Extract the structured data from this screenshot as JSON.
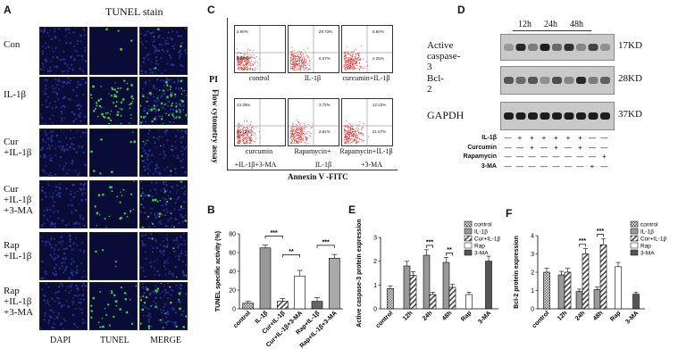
{
  "panelA": {
    "letter": "A",
    "title": "TUNEL stain",
    "rows": [
      "Con",
      "IL-1β",
      "Cur\n+IL-1β",
      "Cur\n+IL-1β\n+3-MA",
      "Rap\n+IL-1β",
      "Rap\n+IL-1β\n+3-MA"
    ],
    "columns": [
      "DAPI",
      "TUNEL",
      "MERGE"
    ],
    "green_density": [
      0.05,
      0.9,
      0.12,
      0.35,
      0.06,
      0.4
    ]
  },
  "panelC": {
    "letter": "C",
    "ylabel": "PI",
    "side_label": "Flow cytometry assay",
    "xlabel": "Annexin V -FITC",
    "plots": [
      {
        "caption": "control",
        "quadrants": [
          "2.90%",
          "",
          "1.62%",
          ""
        ]
      },
      {
        "caption": "IL-1β",
        "quadrants": [
          "",
          "28.73%",
          "",
          "6.07%"
        ]
      },
      {
        "caption": "curcumin+IL-1β",
        "quadrants": [
          "",
          "6.90%",
          "",
          "2.25%"
        ]
      },
      {
        "caption": "curcumin",
        "quadrants": [
          "13.39%",
          "",
          "23.73%",
          ""
        ]
      },
      {
        "caption": "Rapamycin+",
        "quadrants": [
          "",
          "3.72%",
          "",
          "2.81%"
        ]
      },
      {
        "caption": "Rapamycin+IL-1β",
        "quadrants": [
          "",
          "12.22%",
          "",
          "21.67%"
        ]
      }
    ],
    "bottom_captions": [
      "+IL-1β+3-MA",
      "IL-1β",
      "+3-MA"
    ]
  },
  "panelD": {
    "letter": "D",
    "timepoints": [
      "12h",
      "24h",
      "48h"
    ],
    "blots": [
      {
        "label": "Active caspase-3",
        "kd": "17KD"
      },
      {
        "label": "Bcl-2",
        "kd": "28KD"
      },
      {
        "label": "GAPDH",
        "kd": "37KD"
      }
    ],
    "treatment_rows": [
      {
        "name": "IL-1β",
        "signs": [
          "—",
          "+",
          "+",
          "+",
          "+",
          "+",
          "+",
          "—",
          "—"
        ]
      },
      {
        "name": "Curcumin",
        "signs": [
          "—",
          "—",
          "+",
          "—",
          "+",
          "—",
          "+",
          "—",
          "—"
        ]
      },
      {
        "name": "Rapamycin",
        "signs": [
          "—",
          "—",
          "—",
          "—",
          "—",
          "—",
          "—",
          "—",
          "+"
        ]
      },
      {
        "name": "3-MA",
        "signs": [
          "—",
          "—",
          "—",
          "—",
          "—",
          "—",
          "—",
          "+",
          "—"
        ]
      }
    ]
  },
  "chart_data": [
    {
      "panel": "B",
      "type": "bar",
      "ylabel": "TUNEL specific activity (%)",
      "ylim": [
        0,
        80
      ],
      "yticks": [
        0,
        20,
        40,
        60,
        80
      ],
      "categories": [
        "control",
        "IL-1β",
        "Cur+IL-1β",
        "Cur+IL-1β+3-MA",
        "Rap+IL-1β",
        "Rap+IL-1β+3-MA"
      ],
      "values": [
        6,
        65,
        8,
        35,
        8,
        54
      ],
      "errors": [
        2,
        3,
        3,
        6,
        4,
        4
      ],
      "significance": [
        {
          "from": 1,
          "to": 2,
          "label": "***"
        },
        {
          "from": 2,
          "to": 3,
          "label": "**"
        },
        {
          "from": 4,
          "to": 5,
          "label": "***"
        }
      ]
    },
    {
      "panel": "E",
      "type": "bar",
      "ylabel": "Active caspase-3 protein expression",
      "ylim": [
        0,
        3
      ],
      "yticks": [
        0,
        1,
        2,
        3
      ],
      "categories": [
        "control",
        "12h",
        "24h",
        "48h",
        "Rap",
        "3-MA"
      ],
      "series": [
        {
          "name": "control",
          "values": [
            0.85,
            null,
            null,
            null,
            null,
            null
          ]
        },
        {
          "name": "IL-1β",
          "values": [
            null,
            1.8,
            2.25,
            1.95,
            null,
            null
          ]
        },
        {
          "name": "Cur+IL-1β",
          "values": [
            null,
            1.4,
            0.6,
            0.9,
            null,
            null
          ]
        },
        {
          "name": "Rap",
          "values": [
            null,
            null,
            null,
            null,
            0.6,
            null
          ]
        },
        {
          "name": "3-MA",
          "values": [
            null,
            null,
            null,
            null,
            null,
            2.0
          ]
        }
      ],
      "significance": [
        {
          "group": 2,
          "label": "***"
        },
        {
          "group": 3,
          "label": "**"
        }
      ]
    },
    {
      "panel": "F",
      "type": "bar",
      "ylabel": "Bcl-2 protein expression",
      "ylim": [
        0,
        4
      ],
      "yticks": [
        0,
        1,
        2,
        3,
        4
      ],
      "categories": [
        "control",
        "12h",
        "24h",
        "48h",
        "Rap",
        "3-MA"
      ],
      "series": [
        {
          "name": "control",
          "values": [
            2.0,
            null,
            null,
            null,
            null,
            null
          ]
        },
        {
          "name": "IL-1β",
          "values": [
            null,
            1.85,
            0.95,
            1.05,
            null,
            null
          ]
        },
        {
          "name": "Cur+IL-1β",
          "values": [
            null,
            2.0,
            3.0,
            3.5,
            null,
            null
          ]
        },
        {
          "name": "Rap",
          "values": [
            null,
            null,
            null,
            null,
            2.3,
            null
          ]
        },
        {
          "name": "3-MA",
          "values": [
            null,
            null,
            null,
            null,
            null,
            0.8
          ]
        }
      ],
      "significance": [
        {
          "group": 2,
          "label": "***"
        },
        {
          "group": 3,
          "label": "***"
        }
      ]
    }
  ]
}
